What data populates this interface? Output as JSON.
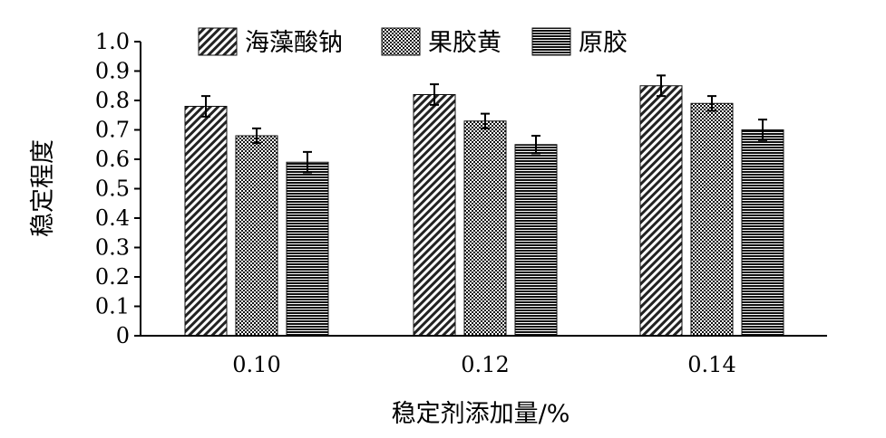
{
  "chart_data": {
    "type": "bar",
    "categories": [
      "0.10",
      "0.12",
      "0.14"
    ],
    "series": [
      {
        "name": "海藻酸钠",
        "values": [
          0.78,
          0.82,
          0.85
        ],
        "errors": [
          0.035,
          0.035,
          0.035
        ],
        "pattern": "diagonal-hatch"
      },
      {
        "name": "果胶黄",
        "values": [
          0.68,
          0.73,
          0.79
        ],
        "errors": [
          0.025,
          0.025,
          0.025
        ],
        "pattern": "crosshatch"
      },
      {
        "name": "原胶",
        "values": [
          0.59,
          0.65,
          0.7
        ],
        "errors": [
          0.035,
          0.03,
          0.035
        ],
        "pattern": "horizontal-lines"
      }
    ],
    "y_ticks": [
      "0",
      "0.1",
      "0.2",
      "0.3",
      "0.4",
      "0.5",
      "0.6",
      "0.7",
      "0.8",
      "0.9",
      "1.0"
    ],
    "ylim": [
      0,
      1.0
    ],
    "xlabel": "稳定剂添加量/%",
    "ylabel": "稳定程度",
    "grid": false,
    "legend_position": "top"
  }
}
